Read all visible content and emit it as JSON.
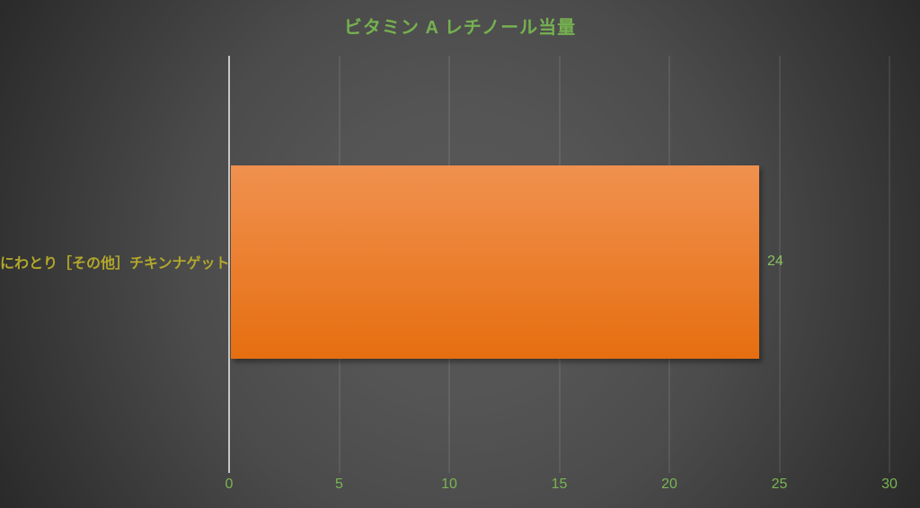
{
  "colors": {
    "title": "#76b150",
    "category_label": "#b3a82b",
    "tick_label": "#79b553",
    "value_label": "#8cc25e",
    "bar_top": "#f0914f",
    "bar_bottom": "#e66e10",
    "axis_line": "#c6c6c6",
    "gridline": "rgba(255,255,255,0.17)"
  },
  "chart_data": {
    "type": "bar",
    "orientation": "horizontal",
    "title": "ビタミン A レチノール当量",
    "categories": [
      "にわとり［その他］チキンナゲット"
    ],
    "values": [
      24
    ],
    "value_labels": [
      "24"
    ],
    "xlabel": "",
    "ylabel": "",
    "xlim": [
      0,
      30
    ],
    "xticks": [
      0,
      5,
      10,
      15,
      20,
      25,
      30
    ],
    "grid": true,
    "legend": false,
    "bar_color": "orange-gradient",
    "background": "dark-radial-gray"
  }
}
